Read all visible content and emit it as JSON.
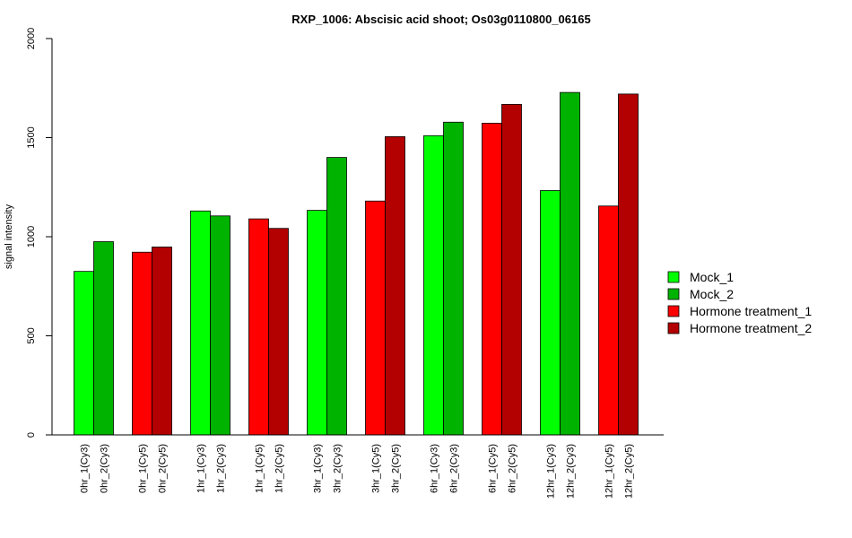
{
  "chart_data": {
    "type": "bar",
    "title": "RXP_1006: Abscisic acid shoot; Os03g0110800_06165",
    "xlabel": "",
    "ylabel": "signal intensity",
    "ylim": [
      0,
      2000
    ],
    "yticks": [
      "0",
      "500",
      "1000",
      "1500",
      "2000"
    ],
    "grid": false,
    "legend_position": "right",
    "series": [
      {
        "name": "Mock_1",
        "color": "#00ff00"
      },
      {
        "name": "Mock_2",
        "color": "#00b300"
      },
      {
        "name": "Hormone treatment_1",
        "color": "#ff0000"
      },
      {
        "name": "Hormone treatment_2",
        "color": "#b30000"
      }
    ],
    "bars": [
      {
        "label": "0hr_1(Cy3)",
        "value": 825,
        "series": 0
      },
      {
        "label": "0hr_2(Cy3)",
        "value": 975,
        "series": 1
      },
      {
        "label": "0hr_1(Cy5)",
        "value": 922,
        "series": 2
      },
      {
        "label": "0hr_2(Cy5)",
        "value": 948,
        "series": 3
      },
      {
        "label": "1hr_1(Cy3)",
        "value": 1130,
        "series": 0
      },
      {
        "label": "1hr_2(Cy3)",
        "value": 1105,
        "series": 1
      },
      {
        "label": "1hr_1(Cy5)",
        "value": 1090,
        "series": 2
      },
      {
        "label": "1hr_2(Cy5)",
        "value": 1042,
        "series": 3
      },
      {
        "label": "3hr_1(Cy3)",
        "value": 1133,
        "series": 0
      },
      {
        "label": "3hr_2(Cy3)",
        "value": 1400,
        "series": 1
      },
      {
        "label": "3hr_1(Cy5)",
        "value": 1180,
        "series": 2
      },
      {
        "label": "3hr_2(Cy5)",
        "value": 1505,
        "series": 3
      },
      {
        "label": "6hr_1(Cy3)",
        "value": 1510,
        "series": 0
      },
      {
        "label": "6hr_2(Cy3)",
        "value": 1578,
        "series": 1
      },
      {
        "label": "6hr_1(Cy5)",
        "value": 1573,
        "series": 2
      },
      {
        "label": "6hr_2(Cy5)",
        "value": 1668,
        "series": 3
      },
      {
        "label": "12hr_1(Cy3)",
        "value": 1233,
        "series": 0
      },
      {
        "label": "12hr_2(Cy3)",
        "value": 1728,
        "series": 1
      },
      {
        "label": "12hr_1(Cy5)",
        "value": 1155,
        "series": 2
      },
      {
        "label": "12hr_2(Cy5)",
        "value": 1720,
        "series": 3
      }
    ]
  }
}
